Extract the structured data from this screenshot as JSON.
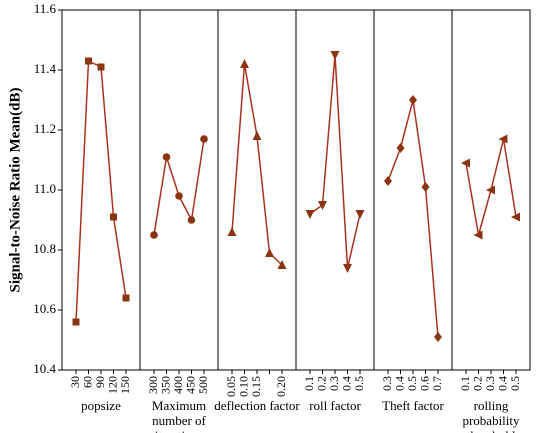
{
  "chart_data": {
    "type": "line",
    "ylabel": "Signal-to-Noise Ratio Mean(dB)",
    "ylim": [
      10.4,
      11.6
    ],
    "yticks": [
      10.4,
      10.6,
      10.8,
      {
        "value": 11.0,
        "label": "11.0"
      },
      11.2,
      11.4,
      11.6
    ],
    "line_color": "#a8321e",
    "marker_color": "#8b3412",
    "panels": [
      {
        "xlabel": "popsize",
        "marker": "square",
        "categories": [
          "30",
          "60",
          "90",
          "120",
          "150"
        ],
        "values": [
          10.56,
          11.43,
          11.41,
          10.91,
          10.64
        ]
      },
      {
        "xlabel": "Maximum number of iterations",
        "marker": "circle",
        "categories": [
          "300",
          "350",
          "400",
          "450",
          "500"
        ],
        "values": [
          10.85,
          11.11,
          10.98,
          10.9,
          11.17
        ]
      },
      {
        "xlabel": "deflection factor",
        "marker": "triangle-up",
        "categories": [
          "0.05",
          "0.10",
          "0.15",
          null,
          "0.20"
        ],
        "values": [
          10.86,
          11.42,
          11.18,
          10.79,
          10.75
        ]
      },
      {
        "xlabel": "roll factor",
        "marker": "triangle-down",
        "categories": [
          "0.1",
          "0.2",
          "0.3",
          "0.4",
          "0.5"
        ],
        "values": [
          10.92,
          10.95,
          11.45,
          10.74,
          10.92
        ]
      },
      {
        "xlabel": "Theft factor",
        "marker": "diamond",
        "categories": [
          "0.3",
          "0.4",
          "0.5",
          "0.6",
          "0.7"
        ],
        "values": [
          11.03,
          11.14,
          11.3,
          11.01,
          10.51
        ]
      },
      {
        "xlabel": "rolling probability threshold",
        "marker": "triangle-left",
        "categories": [
          "0.1",
          "0.2",
          "0.3",
          "0.4",
          "0.5"
        ],
        "values": [
          11.09,
          10.85,
          11.0,
          11.17,
          10.91
        ]
      }
    ]
  }
}
